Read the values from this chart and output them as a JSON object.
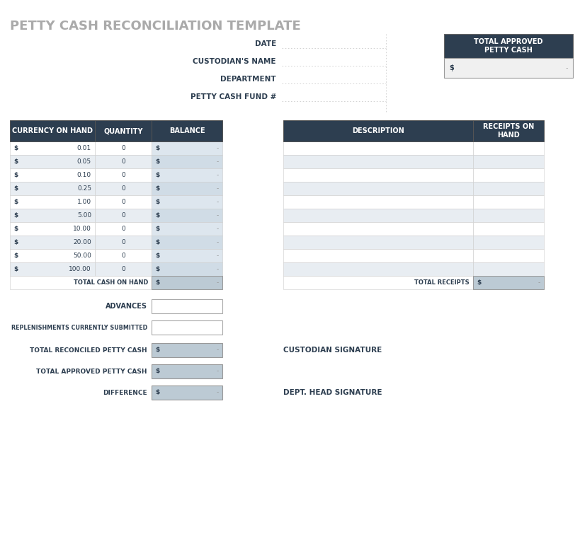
{
  "title": "PETTY CASH RECONCILIATION TEMPLATE",
  "title_color": "#aaaaaa",
  "title_fontsize": 13,
  "dark_header_color": "#2d3e50",
  "header_text_color": "#ffffff",
  "label_color": "#2d3e50",
  "alt_row_bg": "#e8edf2",
  "white_row_bg": "#ffffff",
  "total_row_bg": "#bccad4",
  "input_box_bg": "#f0f0f0",
  "balance_col_bg": "#c8d5de",
  "form_labels": [
    "DATE",
    "CUSTODIAN'S NAME",
    "DEPARTMENT",
    "PETTY CASH FUND #"
  ],
  "left_table_headers": [
    "CURRENCY ON HAND",
    "QUANTITY",
    "BALANCE"
  ],
  "currency_values": [
    "0.01",
    "0.05",
    "0.10",
    "0.25",
    "1.00",
    "5.00",
    "10.00",
    "20.00",
    "50.00",
    "100.00"
  ],
  "right_table_headers": [
    "DESCRIPTION",
    "RECEIPTS ON\nHAND"
  ],
  "top_right_header": "TOTAL APPROVED\nPETTY CASH",
  "bg_color": "#ffffff"
}
